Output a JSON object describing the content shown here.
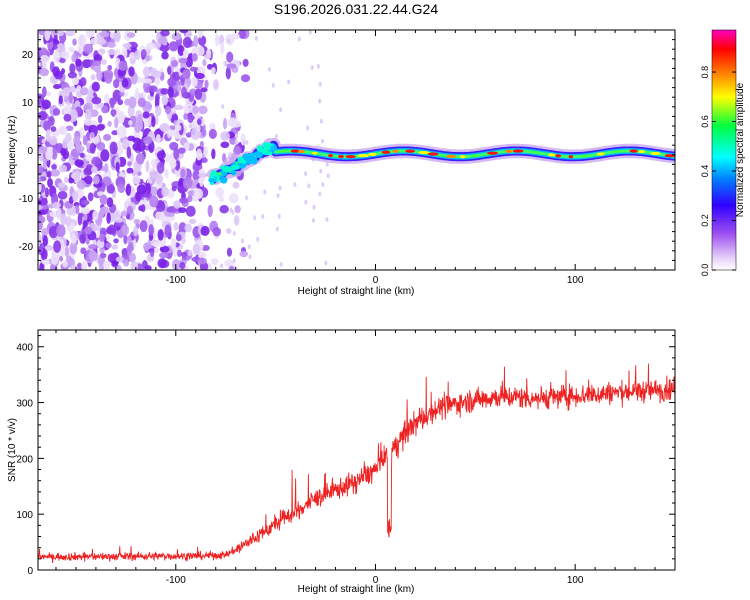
{
  "title": "S196.2026.031.22.44.G24",
  "chart_data": [
    {
      "type": "heatmap",
      "xlabel": "Height of straight line (km)",
      "ylabel": "Frequency (Hz)",
      "xlim": [
        -169,
        150
      ],
      "ylim": [
        -25,
        25
      ],
      "xticks": [
        -100,
        0,
        100
      ],
      "yticks": [
        -20,
        -10,
        0,
        10,
        20
      ],
      "colorbar": {
        "label": "Normalized spectral amplitude",
        "range": [
          0,
          0.97
        ],
        "ticks": [
          0.0,
          0.2,
          0.4,
          0.6,
          0.8
        ],
        "tick_labels": [
          "0.0",
          "0.2",
          "0.4",
          "0.6",
          "0.8"
        ],
        "colormap": [
          "#ffffff",
          "#e6d0f8",
          "#a050f0",
          "#3000ff",
          "#0080ff",
          "#00ffff",
          "#00ff40",
          "#ffff00",
          "#ff8000",
          "#ff0000",
          "#ff00c0"
        ]
      },
      "features": {
        "noise_region_x": [
          -169,
          -75
        ],
        "transition_x": [
          -82,
          -50
        ],
        "transition_freq": [
          -6,
          1
        ],
        "tone_region_x": [
          -50,
          150
        ],
        "tone_freq_hz": -0.8
      }
    },
    {
      "type": "line",
      "xlabel": "Height of straight line (km)",
      "ylabel": "SNR (10 * v/v)",
      "xlim": [
        -169,
        150
      ],
      "ylim": [
        0,
        430
      ],
      "xticks": [
        -100,
        0,
        100
      ],
      "yticks": [
        0,
        100,
        200,
        300,
        400
      ],
      "color": "#ee2222",
      "series": [
        {
          "name": "SNR",
          "x": [
            -169,
            -140,
            -110,
            -90,
            -75,
            -68,
            -60,
            -50,
            -40,
            -30,
            -20,
            -10,
            0,
            5,
            10,
            15,
            20,
            25,
            30,
            40,
            50,
            60,
            70,
            80,
            90,
            100,
            110,
            120,
            130,
            140,
            150
          ],
          "values": [
            24,
            24,
            25,
            25,
            27,
            40,
            58,
            82,
            105,
            128,
            143,
            158,
            180,
            200,
            222,
            245,
            262,
            275,
            288,
            298,
            305,
            310,
            310,
            308,
            310,
            312,
            315,
            318,
            320,
            322,
            325
          ]
        }
      ]
    }
  ]
}
